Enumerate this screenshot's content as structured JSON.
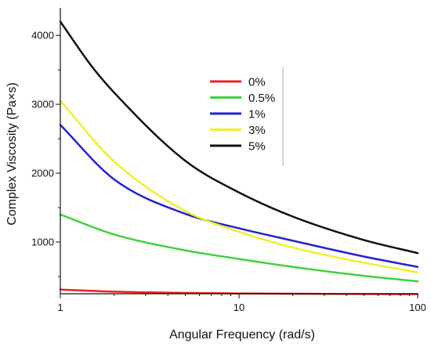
{
  "chart_data": {
    "type": "line",
    "xlabel": "Angular Frequency (rad/s)",
    "ylabel": "Complex Viscosity (Pa×s)",
    "xscale": "log",
    "xlim": [
      1,
      100
    ],
    "ylim": [
      250,
      4400
    ],
    "xticks": [
      {
        "value": 1,
        "label": "1"
      },
      {
        "value": 10,
        "label": "10"
      },
      {
        "value": 100,
        "label": "100"
      }
    ],
    "yticks": [
      {
        "value": 1000,
        "label": "1000"
      },
      {
        "value": 2000,
        "label": "2000"
      },
      {
        "value": 3000,
        "label": "3000"
      },
      {
        "value": 4000,
        "label": "4000"
      }
    ],
    "grid": false,
    "legend_position": "top-center",
    "series": [
      {
        "name": "0%",
        "color": "#e8231f",
        "x": [
          1,
          2,
          5,
          10,
          20,
          50,
          100
        ],
        "y": [
          310,
          280,
          262,
          254,
          250,
          246,
          244
        ]
      },
      {
        "name": "0.5%",
        "color": "#3fd13f",
        "x": [
          1,
          2,
          5,
          10,
          20,
          50,
          100
        ],
        "y": [
          1400,
          1110,
          880,
          755,
          640,
          510,
          430
        ]
      },
      {
        "name": "1%",
        "color": "#2323cf",
        "x": [
          1,
          2,
          5,
          10,
          20,
          50,
          100
        ],
        "y": [
          2700,
          1910,
          1410,
          1200,
          1020,
          790,
          640
        ]
      },
      {
        "name": "3%",
        "color": "#f2ee2a",
        "x": [
          1,
          2,
          5,
          10,
          20,
          50,
          100
        ],
        "y": [
          3050,
          2170,
          1450,
          1150,
          920,
          700,
          560
        ]
      },
      {
        "name": "5%",
        "color": "#111111",
        "x": [
          1,
          1.5,
          2,
          5,
          10,
          20,
          50,
          100
        ],
        "y": [
          4200,
          3550,
          3170,
          2180,
          1720,
          1370,
          1030,
          840
        ]
      }
    ]
  }
}
